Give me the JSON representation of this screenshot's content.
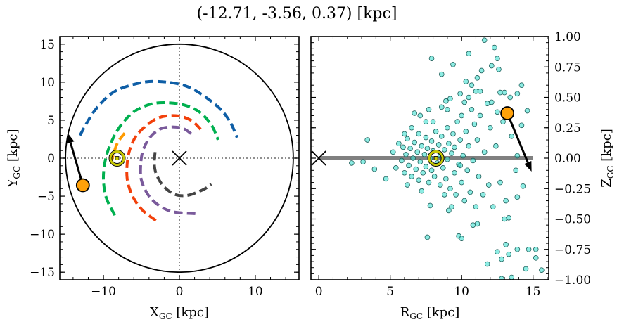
{
  "chart_data": [
    {
      "type": "line",
      "title": "(-12.71, -3.56, 0.37) [kpc]",
      "xlabel": "X",
      "xlabel_sub": "GC",
      "xlabel_unit": " [kpc]",
      "ylabel": "Y",
      "ylabel_sub": "GC",
      "ylabel_unit": " [kpc]",
      "xlim": [
        -15.75,
        15.75
      ],
      "ylim": [
        -16,
        16
      ],
      "xticks": [
        -10,
        0,
        10
      ],
      "yticks": [
        -15,
        -10,
        -5,
        0,
        5,
        10,
        15
      ],
      "xtick_labels": [
        "−10",
        "0",
        "10"
      ],
      "ytick_labels": [
        "−15",
        "−10",
        "−5",
        "0",
        "5",
        "10",
        "15"
      ],
      "grid": false,
      "circle_radius": 15,
      "crosshair_lines": {
        "x": 0,
        "y": 0,
        "style": "dotted",
        "color": "#808080"
      },
      "arms": [
        {
          "color": "#0e5ea6",
          "points": [
            [
              -13.1,
              3.0
            ],
            [
              -11.2,
              6.2
            ],
            [
              -8.8,
              8.6
            ],
            [
              -6,
              9.7
            ],
            [
              -3,
              10.1
            ],
            [
              1.1,
              9.4
            ],
            [
              4.8,
              7.0
            ],
            [
              6.6,
              4.9
            ],
            [
              7.6,
              2.7
            ]
          ]
        },
        {
          "color": "#00b04f",
          "points": [
            [
              -8.5,
              -7.5
            ],
            [
              -9.6,
              -5.3
            ],
            [
              -10,
              -2.9
            ],
            [
              -9.8,
              -0.5
            ],
            [
              -9.1,
              1.8
            ],
            [
              -7.8,
              4.2
            ],
            [
              -6,
              6.1
            ],
            [
              -3.8,
              7.1
            ],
            [
              -1.7,
              7.3
            ],
            [
              0.6,
              7.0
            ],
            [
              2.6,
              6.1
            ],
            [
              4.2,
              4.4
            ],
            [
              5.1,
              2.4
            ]
          ]
        },
        {
          "color": "#f2400b",
          "points": [
            [
              -3.1,
              -8.2
            ],
            [
              -4.8,
              -6.9
            ],
            [
              -6,
              -5.3
            ],
            [
              -6.8,
              -3.2
            ],
            [
              -6.9,
              -1
            ],
            [
              -6.5,
              1.2
            ],
            [
              -5.4,
              3.3
            ],
            [
              -3,
              5.2
            ],
            [
              -0.5,
              5.6
            ],
            [
              1.5,
              5.0
            ],
            [
              2.8,
              3.8
            ]
          ]
        },
        {
          "color": "#7a5a9b",
          "points": [
            [
              2.1,
              -7.3
            ],
            [
              0.3,
              -7.2
            ],
            [
              -1.4,
              -6.9
            ],
            [
              -3,
              -6.0
            ],
            [
              -4.2,
              -4.7
            ],
            [
              -5,
              -2.9
            ],
            [
              -5.1,
              -1
            ],
            [
              -4.8,
              1.0
            ],
            [
              -3.9,
              2.7
            ],
            [
              -2.6,
              3.8
            ],
            [
              -1.1,
              4.1
            ],
            [
              0.5,
              3.9
            ],
            [
              1.7,
              3.1
            ]
          ]
        },
        {
          "color": "#444444",
          "points": [
            [
              -3.2,
              0.8
            ],
            [
              -3.3,
              -0.8
            ],
            [
              -3,
              -2.2
            ],
            [
              -2,
              -3.8
            ],
            [
              -0.5,
              -4.8
            ],
            [
              1,
              -4.9
            ],
            [
              2.3,
              -4.5
            ],
            [
              3.4,
              -4.0
            ],
            [
              4.2,
              -3.4
            ]
          ]
        },
        {
          "color": "#ff9a00",
          "points": [
            [
              -7.2,
              3.3
            ],
            [
              -8.1,
              2.1
            ],
            [
              -8.6,
              0.8
            ],
            [
              -8.9,
              -0.3
            ],
            [
              -9,
              -1
            ]
          ]
        }
      ],
      "center_marker": {
        "x": 0,
        "y": 0,
        "symbol": "x"
      },
      "sun": {
        "x": -8.2,
        "y": 0,
        "color": "#c8c800"
      },
      "object": {
        "x": -12.71,
        "y": -3.56,
        "color": "#ffa10a"
      },
      "velocity_arrow": {
        "from": [
          -12.71,
          -3.56
        ],
        "to": [
          -14.7,
          3.3
        ],
        "color": "#000000"
      }
    },
    {
      "type": "scatter",
      "xlabel": "R",
      "xlabel_sub": "GC",
      "xlabel_unit": " [kpc]",
      "ylabel": "Z",
      "ylabel_sub": "GC",
      "ylabel_unit": " [kpc]",
      "xlim": [
        -0.55,
        16.1
      ],
      "ylim": [
        -1.0,
        1.0
      ],
      "xticks": [
        0,
        5,
        10,
        15
      ],
      "xtick_labels": [
        "0",
        "5",
        "10",
        "15"
      ],
      "yticks": [
        1.0,
        0.75,
        0.5,
        0.25,
        0.0,
        -0.25,
        -0.5,
        -0.75,
        -1.0
      ],
      "ytick_labels": [
        "1.00",
        "0.75",
        "0.50",
        "0.25",
        "0.00",
        "−0.25",
        "−0.50",
        "−0.75",
        "−1.00"
      ],
      "yaxis_side": "right",
      "grid": false,
      "disk_band": {
        "z": 0,
        "from": 0,
        "to": 15,
        "color": "#808080"
      },
      "marker_color": "#40e0d0",
      "marker_edge": "#1f5f5a",
      "points": [
        [
          5.2,
          0.05
        ],
        [
          5.4,
          -0.08
        ],
        [
          5.6,
          0.12
        ],
        [
          5.8,
          -0.02
        ],
        [
          5.9,
          0.09
        ],
        [
          6.0,
          -0.12
        ],
        [
          6.1,
          0.03
        ],
        [
          6.2,
          0.16
        ],
        [
          6.3,
          -0.06
        ],
        [
          6.4,
          0.08
        ],
        [
          6.5,
          -0.15
        ],
        [
          6.6,
          0.0
        ],
        [
          6.7,
          0.13
        ],
        [
          6.8,
          -0.09
        ],
        [
          6.9,
          0.05
        ],
        [
          7.0,
          -0.18
        ],
        [
          7.0,
          0.2
        ],
        [
          7.1,
          -0.03
        ],
        [
          7.2,
          0.1
        ],
        [
          7.3,
          -0.12
        ],
        [
          7.4,
          0.03
        ],
        [
          7.5,
          0.17
        ],
        [
          7.5,
          -0.07
        ],
        [
          7.6,
          0.08
        ],
        [
          7.7,
          -0.2
        ],
        [
          7.8,
          0.0
        ],
        [
          7.9,
          0.14
        ],
        [
          7.9,
          -0.1
        ],
        [
          8.0,
          0.06
        ],
        [
          8.1,
          -0.15
        ],
        [
          8.2,
          0.22
        ],
        [
          8.3,
          -0.04
        ],
        [
          8.4,
          0.11
        ],
        [
          8.5,
          -0.22
        ],
        [
          8.5,
          0.02
        ],
        [
          8.6,
          0.18
        ],
        [
          8.7,
          -0.08
        ],
        [
          8.8,
          0.07
        ],
        [
          8.9,
          -0.17
        ],
        [
          9.0,
          0.25
        ],
        [
          9.0,
          -0.01
        ],
        [
          9.1,
          0.12
        ],
        [
          9.2,
          -0.25
        ],
        [
          9.3,
          0.04
        ],
        [
          9.4,
          0.2
        ],
        [
          9.5,
          -0.12
        ],
        [
          9.5,
          0.09
        ],
        [
          9.6,
          -0.3
        ],
        [
          9.7,
          0.3
        ],
        [
          9.8,
          -0.05
        ],
        [
          9.9,
          0.15
        ],
        [
          10.0,
          -0.2
        ],
        [
          10.0,
          0.35
        ],
        [
          10.1,
          0.02
        ],
        [
          10.2,
          -0.35
        ],
        [
          10.3,
          0.22
        ],
        [
          10.4,
          -0.1
        ],
        [
          10.5,
          0.1
        ],
        [
          10.6,
          -0.28
        ],
        [
          10.7,
          0.4
        ],
        [
          10.8,
          -0.02
        ],
        [
          10.9,
          0.28
        ],
        [
          11.0,
          -0.4
        ],
        [
          11.1,
          0.15
        ],
        [
          11.2,
          -0.15
        ],
        [
          11.3,
          0.35
        ],
        [
          11.5,
          -0.3
        ],
        [
          11.6,
          0.05
        ],
        [
          11.8,
          0.45
        ],
        [
          11.9,
          -0.22
        ],
        [
          12.0,
          0.25
        ],
        [
          12.2,
          -0.4
        ],
        [
          12.4,
          0.1
        ],
        [
          12.5,
          0.38
        ],
        [
          12.7,
          -0.2
        ],
        [
          12.9,
          0.3
        ],
        [
          13.1,
          -0.35
        ],
        [
          6.5,
          0.25
        ],
        [
          7.2,
          -0.27
        ],
        [
          8.0,
          0.3
        ],
        [
          8.8,
          -0.3
        ],
        [
          9.3,
          -0.4
        ],
        [
          10.5,
          0.5
        ],
        [
          11.0,
          0.55
        ],
        [
          9.0,
          0.4
        ],
        [
          7.5,
          0.3
        ],
        [
          6.0,
          0.2
        ],
        [
          6.2,
          -0.22
        ],
        [
          11.6,
          0.97
        ],
        [
          12.3,
          0.91
        ],
        [
          7.9,
          0.82
        ],
        [
          10.5,
          0.86
        ],
        [
          9.4,
          0.77
        ],
        [
          8.6,
          0.69
        ],
        [
          12.5,
          0.82
        ],
        [
          12.6,
          0.73
        ],
        [
          14.2,
          0.6
        ],
        [
          10.3,
          0.63
        ],
        [
          9.9,
          0.53
        ],
        [
          7.1,
          0.35
        ],
        [
          6.7,
          0.37
        ],
        [
          3.4,
          0.15
        ],
        [
          2.3,
          -0.04
        ],
        [
          3.1,
          -0.03
        ],
        [
          3.9,
          -0.09
        ],
        [
          4.7,
          -0.17
        ],
        [
          7.6,
          -0.65
        ],
        [
          9.8,
          -0.64
        ],
        [
          10.0,
          -0.66
        ],
        [
          11.8,
          -0.87
        ],
        [
          13.1,
          -0.71
        ],
        [
          13.9,
          -0.75
        ],
        [
          14.7,
          -0.75
        ],
        [
          15.2,
          -0.75
        ],
        [
          15.2,
          -0.82
        ],
        [
          15.6,
          -0.92
        ],
        [
          14.5,
          -0.91
        ],
        [
          12.8,
          -0.99
        ],
        [
          13.5,
          -0.98
        ],
        [
          12.5,
          -0.77
        ],
        [
          13.3,
          -0.79
        ],
        [
          12.8,
          -0.83
        ],
        [
          13.3,
          -0.49
        ],
        [
          13.0,
          -0.5
        ],
        [
          10.8,
          -0.55
        ],
        [
          11.1,
          -0.54
        ],
        [
          9.1,
          -0.43
        ],
        [
          7.8,
          -0.39
        ],
        [
          13.9,
          -0.32
        ],
        [
          14.3,
          -0.23
        ],
        [
          13.8,
          -0.1
        ],
        [
          13.9,
          0.02
        ],
        [
          14.6,
          0.39
        ],
        [
          14.2,
          0.27
        ],
        [
          13.5,
          0.18
        ],
        [
          13.9,
          0.53
        ],
        [
          13.4,
          0.5
        ],
        [
          12.1,
          0.76
        ],
        [
          11.4,
          0.72
        ],
        [
          11.1,
          0.66
        ],
        [
          10.7,
          0.6
        ],
        [
          11.3,
          0.55
        ],
        [
          9.2,
          0.49
        ],
        [
          8.9,
          0.47
        ],
        [
          7.7,
          0.4
        ],
        [
          8.6,
          0.42
        ],
        [
          10.2,
          0.46
        ],
        [
          12.1,
          0.46
        ],
        [
          12.7,
          0.54
        ],
        [
          13.0,
          0.54
        ],
        [
          9.9,
          -0.06
        ]
      ],
      "center_marker": {
        "x": 0,
        "y": 0,
        "symbol": "x"
      },
      "sun": {
        "x": 8.2,
        "y": 0,
        "color": "#c8c800"
      },
      "object": {
        "x": 13.2,
        "y": 0.37,
        "color": "#ffa10a"
      },
      "velocity_arrow": {
        "from": [
          13.2,
          0.37
        ],
        "to": [
          14.9,
          -0.11
        ],
        "color": "#000000"
      }
    }
  ]
}
